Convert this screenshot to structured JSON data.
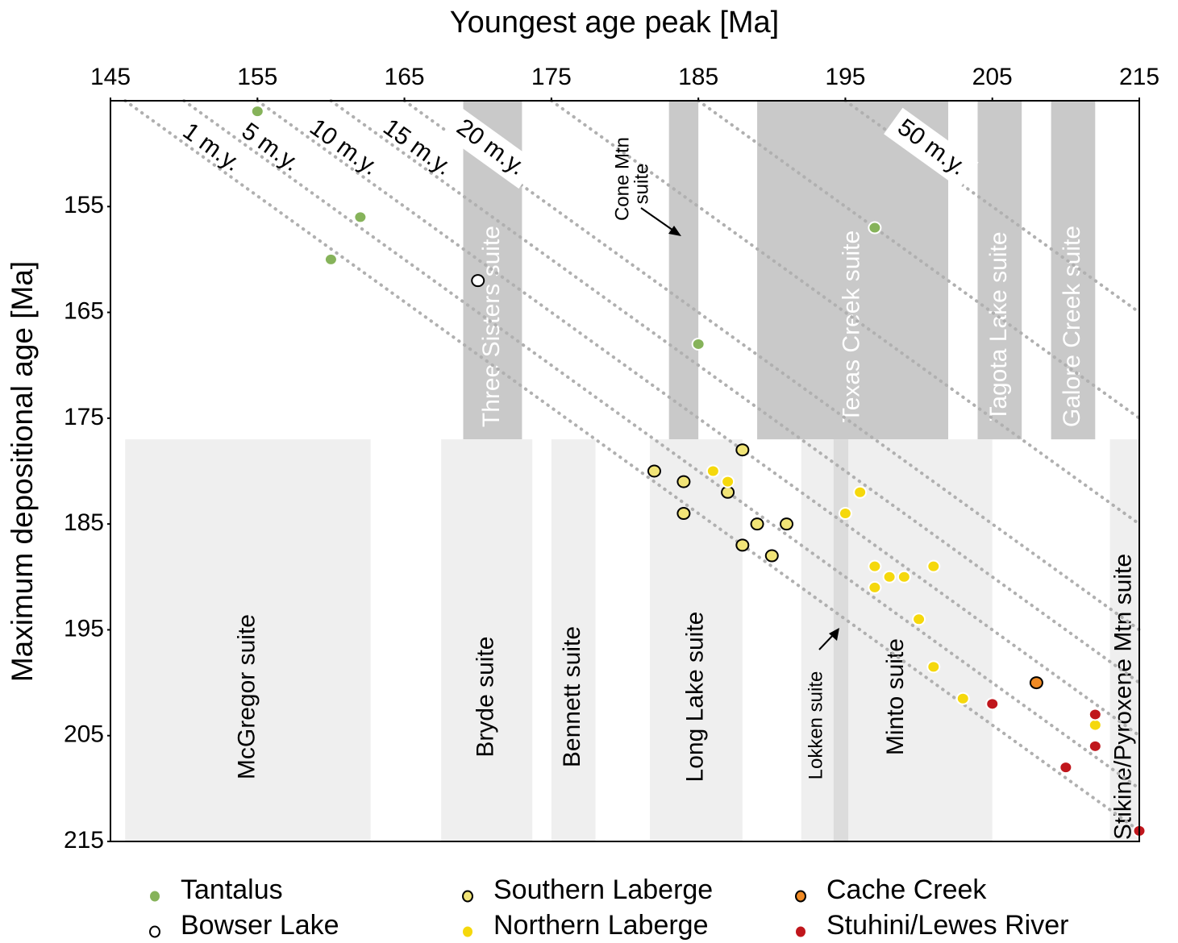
{
  "chart_data": {
    "type": "scatter",
    "title": "Youngest age peak [Ma]",
    "y_label": "Maximum depositional age [Ma]",
    "xlim": [
      145,
      215
    ],
    "ylim": [
      145,
      215
    ],
    "y_inverted": true,
    "xticks": [
      145,
      155,
      165,
      175,
      185,
      195,
      205,
      215
    ],
    "yticks": [
      155,
      165,
      175,
      185,
      195,
      205,
      215
    ],
    "bands": [
      {
        "label": "Three Sisters suite",
        "x": [
          169,
          173
        ],
        "y": [
          145,
          177
        ],
        "color": "#c9c9c9",
        "label_color": "#ffffff"
      },
      {
        "x": [
          183,
          185
        ],
        "y": [
          145,
          177
        ],
        "color": "#c9c9c9"
      },
      {
        "label": "Texas Creek suite",
        "x": [
          189,
          202
        ],
        "y": [
          145,
          177
        ],
        "color": "#c9c9c9",
        "label_color": "#ffffff"
      },
      {
        "label": "Tagota Lake  suite",
        "x": [
          204,
          207
        ],
        "y": [
          145,
          177
        ],
        "color": "#c9c9c9",
        "label_color": "#ffffff"
      },
      {
        "label": "Galore Creek suite",
        "x": [
          209,
          212
        ],
        "y": [
          145,
          177
        ],
        "color": "#c9c9c9",
        "label_color": "#ffffff"
      },
      {
        "label": "McGregor suite",
        "x": [
          146,
          162.7
        ],
        "y": [
          177,
          215
        ],
        "color": "#efefef",
        "label_color": "#000000"
      },
      {
        "label": "Bryde suite",
        "x": [
          167.5,
          173.7
        ],
        "y": [
          177,
          215
        ],
        "color": "#efefef",
        "label_color": "#000000"
      },
      {
        "label": "Bennett suite",
        "x": [
          175,
          178
        ],
        "y": [
          177,
          215
        ],
        "color": "#efefef",
        "label_color": "#000000"
      },
      {
        "label": "Long Lake suite",
        "x": [
          181.7,
          188
        ],
        "y": [
          177,
          215
        ],
        "color": "#efefef",
        "label_color": "#000000"
      },
      {
        "label": "Minto suite",
        "x": [
          192,
          205
        ],
        "y": [
          177,
          215
        ],
        "color": "#efefef",
        "label_color": "#000000"
      },
      {
        "x": [
          194.2,
          195.2
        ],
        "y": [
          177,
          215
        ],
        "color": "#dcdcdc"
      },
      {
        "label": "Stikine/Pyroxene Mtn suite",
        "x": [
          213,
          215
        ],
        "y": [
          177,
          215
        ],
        "color": "#efefef",
        "label_color": "#000000"
      }
    ],
    "ref_lines": [
      {
        "offset": 1,
        "label": "1 m.y."
      },
      {
        "offset": 5,
        "label": "5 m.y."
      },
      {
        "offset": 10,
        "label": "10 m.y."
      },
      {
        "offset": 15,
        "label": "15 m.y."
      },
      {
        "offset": 20,
        "label": "20 m.y."
      },
      {
        "offset": 30
      },
      {
        "offset": 40
      },
      {
        "offset": 50,
        "label": "50 m.y."
      }
    ],
    "annotations": [
      {
        "lines": [
          "Cone Mtn",
          "suite"
        ]
      },
      {
        "lines": [
          "Lokken suite"
        ]
      }
    ],
    "series": [
      {
        "name": "Tantalus",
        "color": "#86b35a",
        "stroke": "#ffffff",
        "x": [
          155,
          162,
          160,
          197,
          185
        ],
        "values": [
          146,
          156,
          160,
          157,
          168
        ]
      },
      {
        "name": "Bowser Lake",
        "color": "#ffffff",
        "stroke": "#000000",
        "x": [
          170
        ],
        "values": [
          162
        ]
      },
      {
        "name": "Southern Laberge",
        "color": "#f1e477",
        "stroke": "#000000",
        "x": [
          188,
          182,
          184,
          187,
          184,
          189,
          191,
          188,
          190
        ],
        "values": [
          178,
          180,
          181,
          182,
          184,
          185,
          185,
          187,
          188
        ]
      },
      {
        "name": "Northern Laberge",
        "color": "#f5d80c",
        "stroke": "#ffffff",
        "x": [
          186,
          187,
          196,
          195,
          197,
          198,
          197,
          199,
          201,
          200,
          201,
          203,
          205,
          212
        ],
        "values": [
          180,
          181,
          182,
          184,
          189,
          190,
          191,
          190,
          189,
          194,
          198.5,
          201.5,
          202,
          204
        ]
      },
      {
        "name": "Cache Creek",
        "color": "#f08a24",
        "stroke": "#000000",
        "x": [
          208
        ],
        "values": [
          200
        ]
      },
      {
        "name": "Stuhini/Lewes River",
        "color": "#c0161c",
        "stroke": "#ffffff",
        "x": [
          205,
          212,
          212,
          210,
          215
        ],
        "values": [
          202,
          203,
          206,
          208,
          214
        ]
      }
    ]
  }
}
